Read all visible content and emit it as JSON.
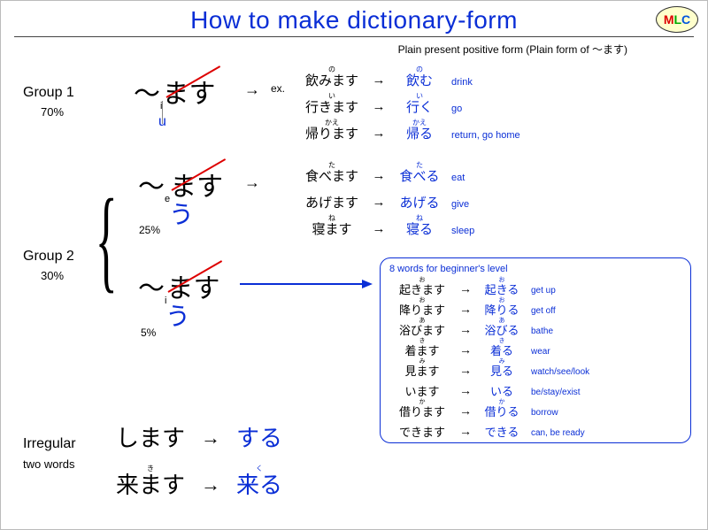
{
  "title": "How to make dictionary-form",
  "subtitle": "Plain present positive form (Plain form of ～ます)",
  "logo": {
    "m": "M",
    "l": "L",
    "c": "C"
  },
  "colors": {
    "title": "#0a2ed6",
    "accent": "#0a2ed6",
    "strike": "#d00",
    "text": "#000000"
  },
  "group1": {
    "label": "Group 1",
    "percent": "70%",
    "pattern": {
      "tilde": "～",
      "vowel": "i",
      "masu": "ます",
      "suffix": "u"
    },
    "ex_label": "ex.",
    "examples": [
      {
        "furi": "の",
        "masu": "飲みます",
        "dfuri": "の",
        "dict": "飲む",
        "en": "drink"
      },
      {
        "furi": "い",
        "masu": "行きます",
        "dfuri": "い",
        "dict": "行く",
        "en": "go"
      },
      {
        "furi": "かえ",
        "masu": "帰ります",
        "dfuri": "かえ",
        "dict": "帰る",
        "en": "return, go home"
      }
    ]
  },
  "group2": {
    "label": "Group 2",
    "percent": "30%",
    "sub_e": {
      "tilde": "～",
      "vowel": "e",
      "masu": "ます",
      "suffix": "う",
      "percent": "25%"
    },
    "sub_i": {
      "tilde": "～",
      "vowel": "i",
      "masu": "ます",
      "suffix": "う",
      "percent": "5%"
    },
    "examples_e": [
      {
        "furi": "た",
        "masu": "食べます",
        "dfuri": "た",
        "dict": "食べる",
        "en": "eat"
      },
      {
        "furi": "",
        "masu": "あげます",
        "dfuri": "",
        "dict": "あげる",
        "en": "give"
      },
      {
        "furi": "ね",
        "masu": "寝ます",
        "dfuri": "ね",
        "dict": "寝る",
        "en": "sleep"
      }
    ],
    "box_title": "8 words for beginner's level",
    "examples_i": [
      {
        "furi": "お",
        "masu": "起きます",
        "dfuri": "お",
        "dict": "起きる",
        "en": "get up"
      },
      {
        "furi": "お",
        "masu": "降ります",
        "dfuri": "お",
        "dict": "降りる",
        "en": "get off"
      },
      {
        "furi": "あ",
        "masu": "浴びます",
        "dfuri": "あ",
        "dict": "浴びる",
        "en": "bathe"
      },
      {
        "furi": "き",
        "masu": "着ます",
        "dfuri": "き",
        "dict": "着る",
        "en": "wear"
      },
      {
        "furi": "み",
        "masu": "見ます",
        "dfuri": "み",
        "dict": "見る",
        "en": "watch/see/look"
      },
      {
        "furi": "",
        "masu": "います",
        "dfuri": "",
        "dict": "いる",
        "en": "be/stay/exist"
      },
      {
        "furi": "か",
        "masu": "借ります",
        "dfuri": "か",
        "dict": "借りる",
        "en": "borrow"
      },
      {
        "furi": "",
        "masu": "できます",
        "dfuri": "",
        "dict": "できる",
        "en": "can, be ready"
      }
    ]
  },
  "irregular": {
    "label": "Irregular",
    "sublabel": "two words",
    "rows": [
      {
        "furi": "",
        "masu": "します",
        "dfuri": "",
        "dict": "する"
      },
      {
        "furi": "き",
        "masu": "来ます",
        "dfuri": "く",
        "dict": "来る"
      }
    ]
  }
}
